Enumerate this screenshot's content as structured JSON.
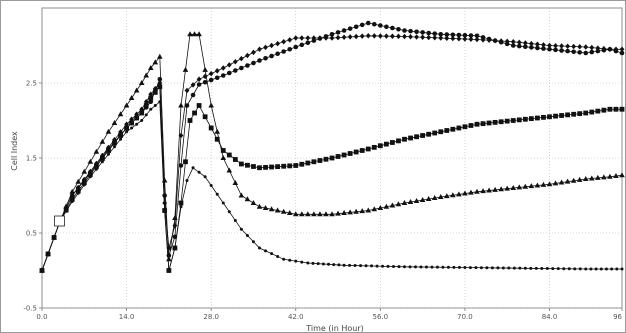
{
  "chart_data": {
    "type": "line",
    "title": "",
    "xlabel": "Time (in Hour)",
    "ylabel": "Cell Index",
    "xlim": [
      0,
      96
    ],
    "ylim": [
      -0.5,
      3.5
    ],
    "x_ticks": [
      0,
      14,
      28,
      42,
      56,
      70,
      84,
      96
    ],
    "x_tick_labels": [
      "0.0",
      "14.0",
      "28.0",
      "42.0",
      "56.0",
      "70.0",
      "84.0",
      "96"
    ],
    "y_ticks": [
      -0.5,
      0.5,
      1.5,
      2.5
    ],
    "y_tick_labels": [
      "-0.5",
      "0.5",
      "1.5",
      "2.5"
    ],
    "grid": "dotted",
    "legend": "none",
    "normalization_point": {
      "x": 2.9,
      "y": 0.66
    },
    "series": [
      {
        "marker": "circle",
        "points": [
          [
            0,
            0
          ],
          [
            3,
            0.66
          ],
          [
            5,
            1.0
          ],
          [
            8,
            1.3
          ],
          [
            11,
            1.62
          ],
          [
            14,
            1.9
          ],
          [
            16.5,
            2.1
          ],
          [
            18,
            2.25
          ],
          [
            19.5,
            2.55
          ],
          [
            20.3,
            1.0
          ],
          [
            21,
            0.2
          ],
          [
            22,
            0.45
          ],
          [
            23,
            1.4
          ],
          [
            24,
            2.2
          ],
          [
            26,
            2.48
          ],
          [
            30,
            2.6
          ],
          [
            36,
            2.8
          ],
          [
            42,
            2.98
          ],
          [
            48,
            3.15
          ],
          [
            54,
            3.3
          ],
          [
            60,
            3.2
          ],
          [
            66,
            3.15
          ],
          [
            72,
            3.13
          ],
          [
            78,
            3.0
          ],
          [
            84,
            2.95
          ],
          [
            90,
            2.9
          ],
          [
            94,
            2.95
          ],
          [
            96,
            2.9
          ]
        ]
      },
      {
        "marker": "diamond",
        "points": [
          [
            0,
            0
          ],
          [
            3,
            0.66
          ],
          [
            5,
            1.0
          ],
          [
            8,
            1.32
          ],
          [
            11,
            1.64
          ],
          [
            14,
            1.95
          ],
          [
            16.5,
            2.15
          ],
          [
            18,
            2.35
          ],
          [
            19.5,
            2.5
          ],
          [
            20.3,
            0.9
          ],
          [
            21,
            0.3
          ],
          [
            22,
            0.6
          ],
          [
            23,
            1.8
          ],
          [
            24,
            2.4
          ],
          [
            26,
            2.55
          ],
          [
            30,
            2.7
          ],
          [
            36,
            2.95
          ],
          [
            42,
            3.1
          ],
          [
            48,
            3.1
          ],
          [
            54,
            3.13
          ],
          [
            60,
            3.12
          ],
          [
            66,
            3.1
          ],
          [
            72,
            3.08
          ],
          [
            78,
            3.05
          ],
          [
            84,
            3.0
          ],
          [
            90,
            2.98
          ],
          [
            94,
            2.95
          ],
          [
            96,
            2.95
          ]
        ]
      },
      {
        "marker": "triangle",
        "points": [
          [
            0,
            0
          ],
          [
            3,
            0.66
          ],
          [
            5,
            1.05
          ],
          [
            8,
            1.45
          ],
          [
            11,
            1.85
          ],
          [
            14,
            2.2
          ],
          [
            16.5,
            2.5
          ],
          [
            18,
            2.7
          ],
          [
            19.5,
            2.85
          ],
          [
            20.3,
            1.2
          ],
          [
            21,
            0.15
          ],
          [
            22,
            0.7
          ],
          [
            23,
            2.2
          ],
          [
            24.5,
            3.15
          ],
          [
            26,
            3.15
          ],
          [
            28,
            2.2
          ],
          [
            30,
            1.5
          ],
          [
            33,
            1.0
          ],
          [
            36,
            0.85
          ],
          [
            42,
            0.75
          ],
          [
            48,
            0.75
          ],
          [
            54,
            0.8
          ],
          [
            60,
            0.9
          ],
          [
            66,
            0.98
          ],
          [
            72,
            1.05
          ],
          [
            78,
            1.1
          ],
          [
            84,
            1.15
          ],
          [
            90,
            1.22
          ],
          [
            94,
            1.25
          ],
          [
            96,
            1.27
          ]
        ]
      },
      {
        "marker": "square",
        "points": [
          [
            0,
            0
          ],
          [
            3,
            0.66
          ],
          [
            5,
            0.95
          ],
          [
            8,
            1.28
          ],
          [
            11,
            1.6
          ],
          [
            14,
            1.9
          ],
          [
            16.5,
            2.1
          ],
          [
            18,
            2.3
          ],
          [
            19.5,
            2.45
          ],
          [
            20.3,
            0.8
          ],
          [
            21,
            0.0
          ],
          [
            22,
            0.3
          ],
          [
            23,
            0.9
          ],
          [
            24.5,
            2.0
          ],
          [
            26,
            2.2
          ],
          [
            28,
            1.9
          ],
          [
            30,
            1.6
          ],
          [
            33,
            1.42
          ],
          [
            36,
            1.37
          ],
          [
            42,
            1.4
          ],
          [
            48,
            1.5
          ],
          [
            54,
            1.62
          ],
          [
            60,
            1.75
          ],
          [
            66,
            1.85
          ],
          [
            72,
            1.95
          ],
          [
            78,
            2.0
          ],
          [
            84,
            2.05
          ],
          [
            90,
            2.1
          ],
          [
            94,
            2.15
          ],
          [
            96,
            2.15
          ]
        ]
      },
      {
        "marker": "small-circle",
        "points": [
          [
            0,
            0
          ],
          [
            3,
            0.66
          ],
          [
            5,
            0.92
          ],
          [
            8,
            1.25
          ],
          [
            11,
            1.55
          ],
          [
            14,
            1.85
          ],
          [
            16.5,
            2.0
          ],
          [
            18,
            2.15
          ],
          [
            19.5,
            2.25
          ],
          [
            20.3,
            0.8
          ],
          [
            21,
            0.0
          ],
          [
            22,
            0.3
          ],
          [
            23,
            0.85
          ],
          [
            24,
            1.2
          ],
          [
            25,
            1.37
          ],
          [
            27,
            1.25
          ],
          [
            30,
            0.9
          ],
          [
            33,
            0.55
          ],
          [
            36,
            0.3
          ],
          [
            40,
            0.15
          ],
          [
            44,
            0.1
          ],
          [
            50,
            0.07
          ],
          [
            60,
            0.05
          ],
          [
            70,
            0.04
          ],
          [
            80,
            0.03
          ],
          [
            90,
            0.02
          ],
          [
            96,
            0.02
          ]
        ]
      }
    ]
  }
}
